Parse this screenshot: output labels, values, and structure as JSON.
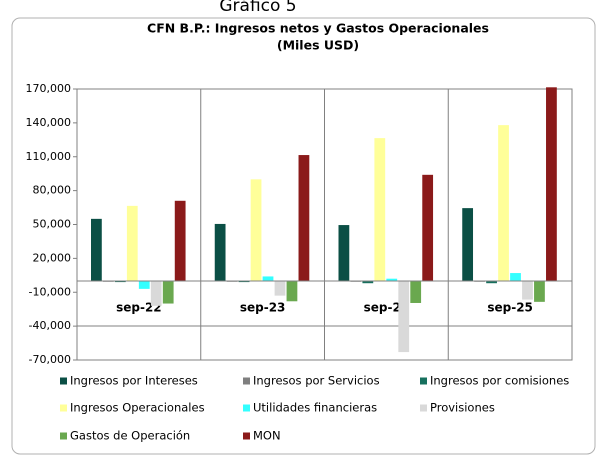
{
  "chart_data": {
    "type": "bar",
    "supertitle": "Gráfico 5",
    "title": "CFN B.P.: Ingresos netos y Gastos Operacionales",
    "subtitle": "(Miles USD)",
    "categories": [
      "sep-22",
      "sep-23",
      "sep-24",
      "sep-25"
    ],
    "series": [
      {
        "name": "Ingresos por Intereses",
        "color": "#0b4f45",
        "values": [
          55000,
          50500,
          49500,
          64500
        ]
      },
      {
        "name": "Ingresos por Servicios",
        "color": "#7f7f7f",
        "values": [
          -500,
          -500,
          -500,
          -500
        ]
      },
      {
        "name": "Ingresos por comisiones",
        "color": "#17705e",
        "values": [
          -1000,
          -1000,
          -2000,
          -2000
        ]
      },
      {
        "name": "Ingresos Operacionales",
        "color": "#ffff99",
        "values": [
          66500,
          90000,
          126500,
          138000
        ]
      },
      {
        "name": "Utilidades financieras",
        "color": "#33ffff",
        "values": [
          -7000,
          4000,
          2000,
          7000
        ]
      },
      {
        "name": "Provisiones",
        "color": "#d9d9d9",
        "values": [
          -22000,
          -13000,
          -63000,
          -16500
        ]
      },
      {
        "name": "Gastos de Operación",
        "color": "#6aa84f",
        "values": [
          -20000,
          -18000,
          -19500,
          -18500
        ]
      },
      {
        "name": "MON",
        "color": "#8b1a1a",
        "values": [
          71000,
          111500,
          94000,
          171500
        ]
      }
    ],
    "ylim": [
      -70000,
      170000
    ],
    "yticks": [
      {
        "value": 170000,
        "label": "170,000"
      },
      {
        "value": 140000,
        "label": "140,000"
      },
      {
        "value": 110000,
        "label": "110,000"
      },
      {
        "value": 80000,
        "label": "80,000"
      },
      {
        "value": 50000,
        "label": "50,000"
      },
      {
        "value": 20000,
        "label": "20,000"
      },
      {
        "value": -10000,
        "label": "-10,000"
      },
      {
        "value": -40000,
        "label": "-40,000"
      },
      {
        "value": -70000,
        "label": "-70,000"
      }
    ],
    "grid": false
  }
}
